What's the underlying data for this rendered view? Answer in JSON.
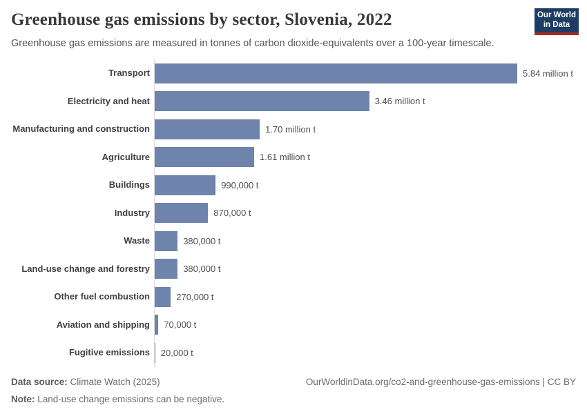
{
  "header": {
    "logo": {
      "line1": "Our World",
      "line2": "in Data"
    }
  },
  "chart_data": {
    "type": "bar",
    "orientation": "horizontal",
    "title": "Greenhouse gas emissions by sector, Slovenia, 2022",
    "subtitle": "Greenhouse gas emissions are measured in tonnes of carbon dioxide-equivalents over a 100-year timescale.",
    "unit": "t",
    "categories": [
      "Transport",
      "Electricity and heat",
      "Manufacturing and construction",
      "Agriculture",
      "Buildings",
      "Industry",
      "Waste",
      "Land-use change and forestry",
      "Other fuel combustion",
      "Aviation and shipping",
      "Fugitive emissions"
    ],
    "values_tonnes": [
      5840000,
      3460000,
      1700000,
      1610000,
      990000,
      870000,
      380000,
      380000,
      270000,
      70000,
      20000
    ],
    "value_labels": [
      "5.84 million t",
      "3.46 million t",
      "1.70 million t",
      "1.61 million t",
      "990,000 t",
      "870,000 t",
      "380,000 t",
      "380,000 t",
      "270,000 t",
      "70,000 t",
      "20,000 t"
    ],
    "xlim_tonnes": [
      0,
      5840000
    ],
    "bar_color": "#6e84ad",
    "grid": false,
    "legend": "none"
  },
  "footer": {
    "source_label": "Data source:",
    "source_value": " Climate Watch (2025)",
    "note_label": "Note:",
    "note_value": " Land-use change emissions can be negative.",
    "right": "OurWorldinData.org/co2-and-greenhouse-gas-emissions | CC BY"
  }
}
